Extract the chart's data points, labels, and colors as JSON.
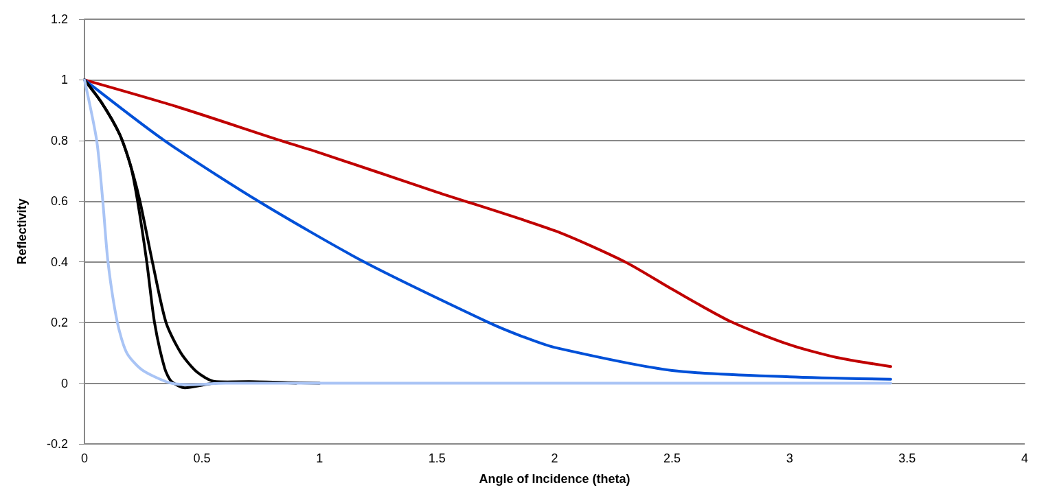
{
  "chart_data": {
    "type": "line",
    "xlabel": "Angle of Incidence (theta)",
    "ylabel": "Reflectivity",
    "xlim": [
      0,
      4
    ],
    "xticks": [
      0,
      0.5,
      1,
      1.5,
      2,
      2.5,
      3,
      3.5,
      4
    ],
    "ylim": [
      -0.2,
      1.2
    ],
    "yticks": [
      -0.2,
      0,
      0.2,
      0.4,
      0.6,
      0.8,
      1,
      1.2
    ],
    "grid": "y",
    "marker": "none",
    "series": [
      {
        "color": "#c00000",
        "x": [
          0,
          0.4,
          0.823,
          1,
          1.5,
          2,
          2.3,
          2.5,
          2.75,
          3,
          3.2,
          3.43
        ],
        "values": [
          1,
          0.91,
          0.803,
          0.76,
          0.63,
          0.503,
          0.4,
          0.31,
          0.203,
          0.127,
          0.085,
          0.055
        ]
      },
      {
        "color": "#0050d8",
        "x": [
          0,
          0.34,
          0.74,
          1.19,
          1.72,
          1.86,
          2,
          2.5,
          3,
          3.43
        ],
        "values": [
          1,
          0.8,
          0.6,
          0.4,
          0.2,
          0.155,
          0.118,
          0.042,
          0.021,
          0.013
        ]
      },
      {
        "color": "#000000",
        "x": [
          0,
          0.072,
          0.15,
          0.197,
          0.236,
          0.289,
          0.347,
          0.41,
          0.477,
          0.554,
          0.7,
          1
        ],
        "values": [
          1,
          0.926,
          0.82,
          0.715,
          0.6,
          0.4,
          0.2,
          0.1,
          0.038,
          0.006,
          0.004,
          0
        ]
      },
      {
        "color": "#000000",
        "x": [
          0,
          0.072,
          0.15,
          0.197,
          0.226,
          0.265,
          0.298,
          0.341,
          0.37,
          0.427,
          0.55,
          0.7,
          0.9
        ],
        "values": [
          1,
          0.926,
          0.82,
          0.715,
          0.6,
          0.4,
          0.2,
          0.05,
          0.006,
          -0.015,
          0,
          0.005,
          0
        ]
      },
      {
        "color": "#a9c4f5",
        "x": [
          0,
          0.052,
          0.078,
          0.1,
          0.14,
          0.18,
          0.245,
          0.36,
          0.45,
          0.6,
          1,
          2,
          3,
          3.43
        ],
        "values": [
          1,
          0.8,
          0.6,
          0.4,
          0.2,
          0.1,
          0.044,
          0.002,
          -0.005,
          0,
          0,
          0,
          0,
          0
        ]
      }
    ]
  }
}
